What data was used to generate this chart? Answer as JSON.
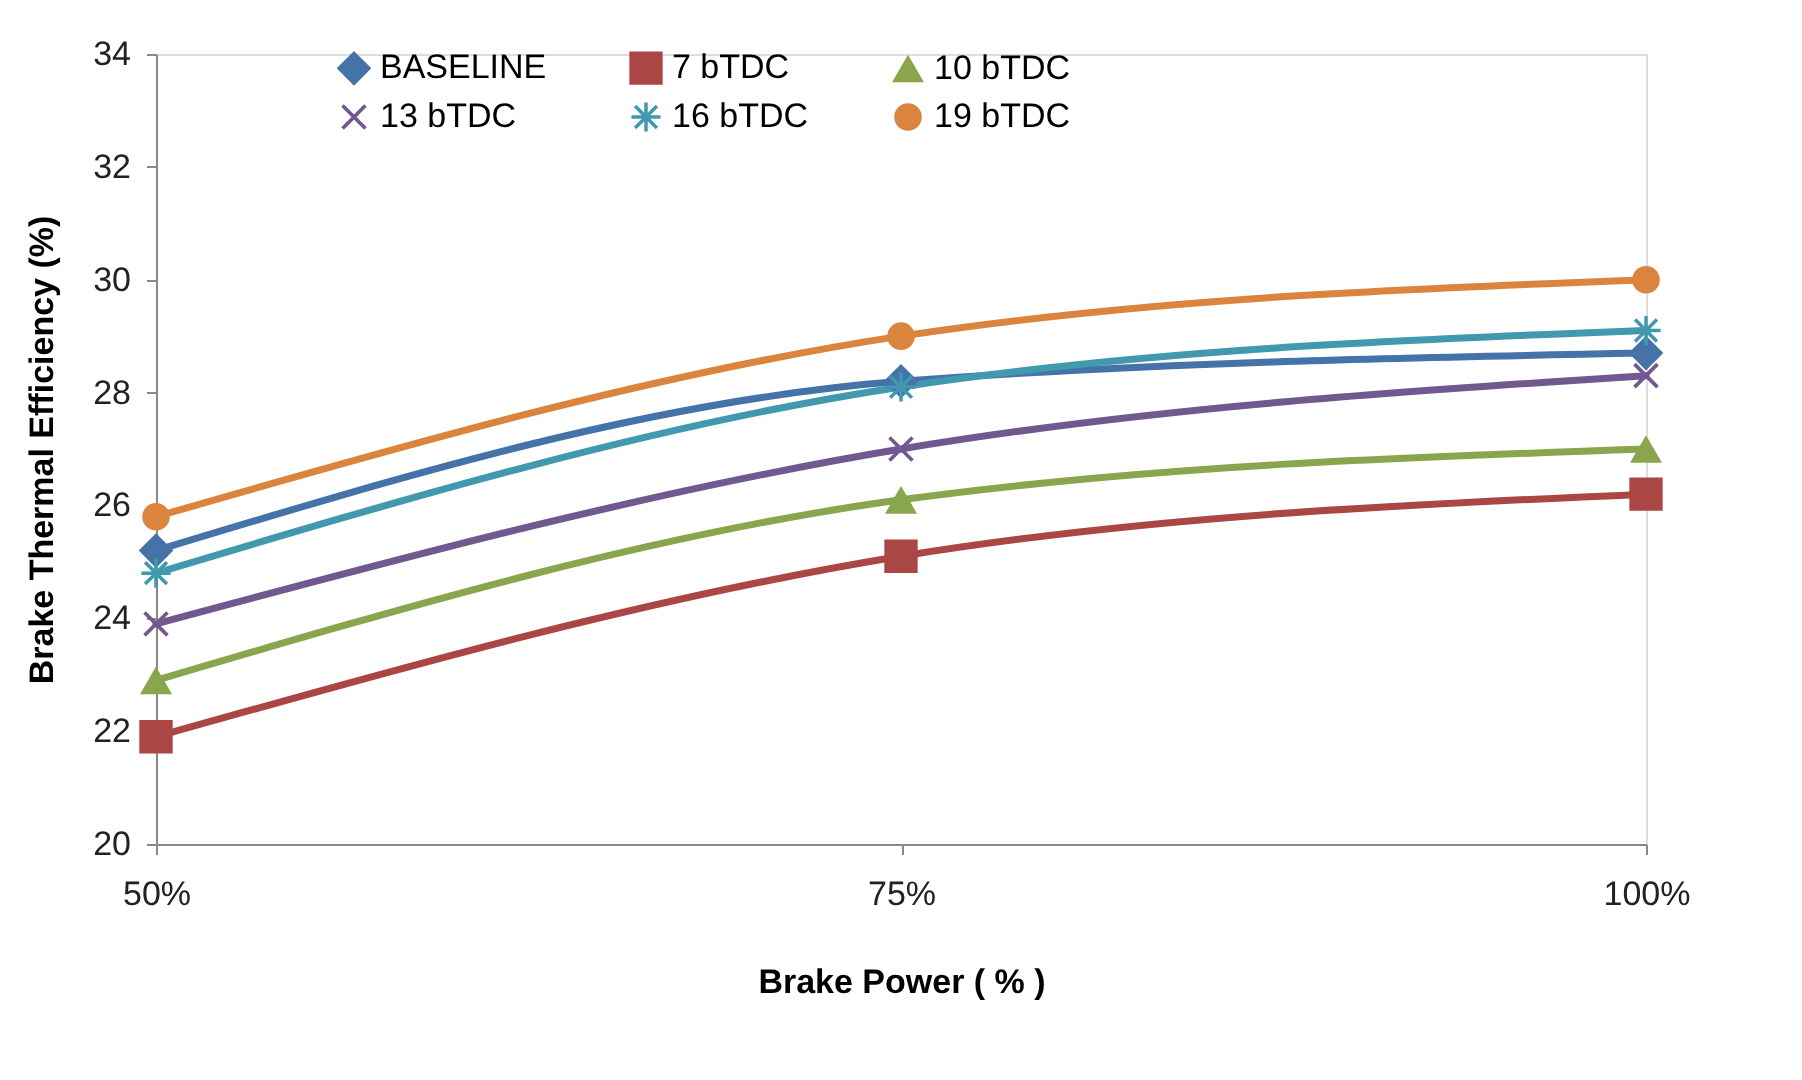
{
  "chart_data": {
    "type": "line",
    "xlabel": "Brake Power ( % )",
    "ylabel": "Brake Thermal Efficiency (%)",
    "categories": [
      "50%",
      "75%",
      "100%"
    ],
    "ylim": [
      20,
      34
    ],
    "yticks": [
      20,
      22,
      24,
      26,
      28,
      30,
      32,
      34
    ],
    "grid": false,
    "legend": "top",
    "line_style": "solid",
    "series": [
      {
        "name": "BASELINE",
        "color": "#4572a7",
        "marker": "diamond",
        "values": [
          25.2,
          28.2,
          28.7
        ]
      },
      {
        "name": "7 bTDC",
        "color": "#aa4643",
        "marker": "square",
        "values": [
          21.9,
          25.1,
          26.2
        ]
      },
      {
        "name": "10 bTDC",
        "color": "#89a54e",
        "marker": "triangle",
        "values": [
          22.9,
          26.1,
          27.0
        ]
      },
      {
        "name": "13 bTDC",
        "color": "#71588f",
        "marker": "cross",
        "values": [
          23.9,
          27.0,
          28.3
        ]
      },
      {
        "name": "16 bTDC",
        "color": "#4198af",
        "marker": "star",
        "values": [
          24.8,
          28.1,
          29.1
        ]
      },
      {
        "name": "19 bTDC",
        "color": "#db843d",
        "marker": "circle",
        "values": [
          25.8,
          29.0,
          30.0
        ]
      }
    ]
  }
}
